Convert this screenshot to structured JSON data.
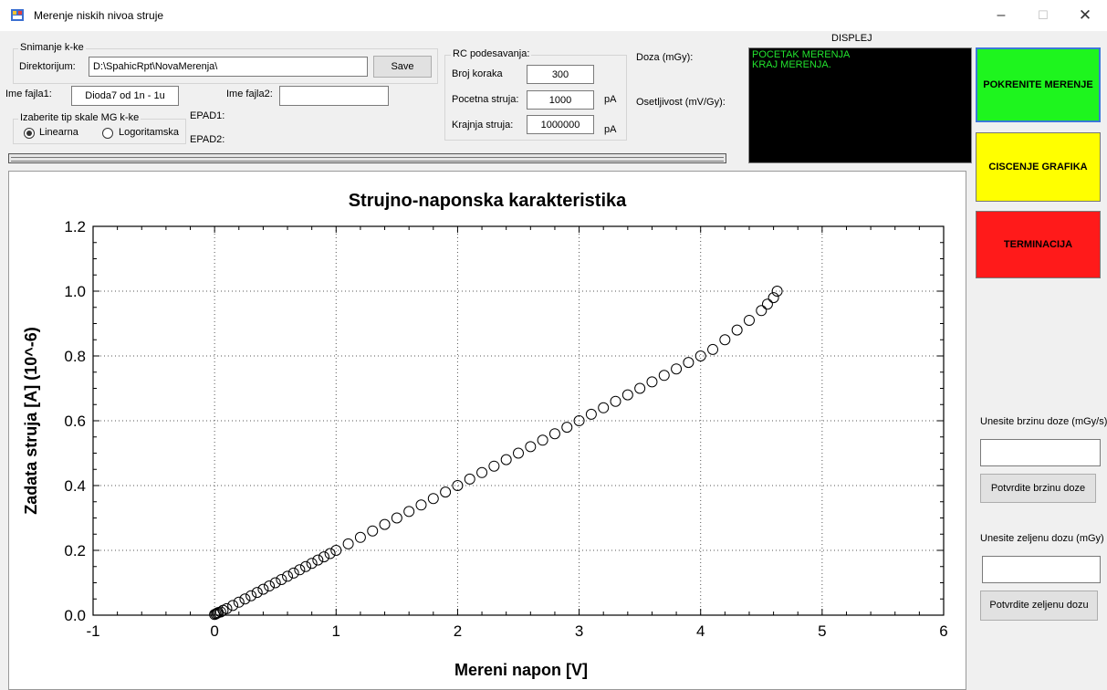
{
  "window": {
    "title": "Merenje niskih nivoa struje",
    "minimize": "–",
    "maximize": "☐",
    "close": "✕"
  },
  "save_group": {
    "legend": "Snimanje k-ke",
    "dir_label": "Direktorijum:",
    "dir_value": "D:\\SpahicRpt\\NovaMerenja\\",
    "save_button": "Save",
    "file1_label": "Ime fajla1:",
    "file1_value": "Dioda7 od 1n - 1u",
    "file2_label": "Ime fajla2:",
    "file2_value": ""
  },
  "scale_group": {
    "legend": "Izaberite tip skale MG k-ke",
    "options": [
      {
        "label": "Linearna",
        "selected": true
      },
      {
        "label": "Logoritamska",
        "selected": false
      }
    ]
  },
  "epad": {
    "epad1": "EPAD1:",
    "epad2": "EPAD2:"
  },
  "rc_group": {
    "legend": "RC podesavanja:",
    "steps_label": "Broj koraka",
    "steps_value": "300",
    "start_label": "Pocetna struja:",
    "start_value": "1000",
    "start_unit": "pA",
    "end_label": "Krajnja struja:",
    "end_value": "1000000",
    "end_unit": "pA"
  },
  "dose": {
    "label": "Doza (mGy):",
    "sensitivity_label": "Osetljivost (mV/Gy):"
  },
  "display": {
    "title": "DISPLEJ",
    "lines": [
      "POCETAK MERENJA",
      "KRAJ MERENJA."
    ],
    "text_color": "#22e22e"
  },
  "buttons": {
    "start": {
      "label": "POKRENITE MERENJE",
      "color": "#1ef51e"
    },
    "clear": {
      "label": "CISCENJE GRAFIKA",
      "color": "#ffff00"
    },
    "terminate": {
      "label": "TERMINACIJA",
      "color": "#ff1a1a"
    }
  },
  "dose_rate": {
    "label": "Unesite brzinu doze (mGy/s)",
    "value": "",
    "button": "Potvrdite brzinu doze"
  },
  "desired_dose": {
    "label": "Unesite zeljenu dozu (mGy)",
    "value": "",
    "button": "Potvrdite zeljenu dozu"
  },
  "progress": {
    "value": 0
  },
  "chart_data": {
    "type": "scatter",
    "title": "Strujno-naponska karakteristika",
    "xlabel": "Mereni napon [V]",
    "ylabel": "Zadata struja [A] (10^-6)",
    "xlim": [
      -1,
      6
    ],
    "ylim": [
      0,
      1.2
    ],
    "xticks": [
      "-1",
      "0",
      "1",
      "2",
      "3",
      "4",
      "5",
      "6"
    ],
    "yticks": [
      "0.0",
      "0.2",
      "0.4",
      "0.6",
      "0.8",
      "1.0",
      "1.2"
    ],
    "grid": true,
    "marker": "open-circle",
    "series": [
      {
        "points": [
          [
            0.0,
            0.002
          ],
          [
            0.01,
            0.004
          ],
          [
            0.02,
            0.006
          ],
          [
            0.03,
            0.008
          ],
          [
            0.05,
            0.01
          ],
          [
            0.07,
            0.015
          ],
          [
            0.1,
            0.02
          ],
          [
            0.15,
            0.03
          ],
          [
            0.2,
            0.04
          ],
          [
            0.25,
            0.05
          ],
          [
            0.3,
            0.06
          ],
          [
            0.35,
            0.07
          ],
          [
            0.4,
            0.08
          ],
          [
            0.45,
            0.09
          ],
          [
            0.5,
            0.1
          ],
          [
            0.55,
            0.11
          ],
          [
            0.6,
            0.12
          ],
          [
            0.65,
            0.13
          ],
          [
            0.7,
            0.14
          ],
          [
            0.75,
            0.15
          ],
          [
            0.8,
            0.16
          ],
          [
            0.85,
            0.17
          ],
          [
            0.9,
            0.18
          ],
          [
            0.95,
            0.19
          ],
          [
            1.0,
            0.2
          ],
          [
            1.1,
            0.22
          ],
          [
            1.2,
            0.24
          ],
          [
            1.3,
            0.26
          ],
          [
            1.4,
            0.28
          ],
          [
            1.5,
            0.3
          ],
          [
            1.6,
            0.32
          ],
          [
            1.7,
            0.34
          ],
          [
            1.8,
            0.36
          ],
          [
            1.9,
            0.38
          ],
          [
            2.0,
            0.4
          ],
          [
            2.1,
            0.42
          ],
          [
            2.2,
            0.44
          ],
          [
            2.3,
            0.46
          ],
          [
            2.4,
            0.48
          ],
          [
            2.5,
            0.5
          ],
          [
            2.6,
            0.52
          ],
          [
            2.7,
            0.54
          ],
          [
            2.8,
            0.56
          ],
          [
            2.9,
            0.58
          ],
          [
            3.0,
            0.6
          ],
          [
            3.1,
            0.62
          ],
          [
            3.2,
            0.64
          ],
          [
            3.3,
            0.66
          ],
          [
            3.4,
            0.68
          ],
          [
            3.5,
            0.7
          ],
          [
            3.6,
            0.72
          ],
          [
            3.7,
            0.74
          ],
          [
            3.8,
            0.76
          ],
          [
            3.9,
            0.78
          ],
          [
            4.0,
            0.8
          ],
          [
            4.1,
            0.82
          ],
          [
            4.2,
            0.85
          ],
          [
            4.3,
            0.88
          ],
          [
            4.4,
            0.91
          ],
          [
            4.5,
            0.94
          ],
          [
            4.55,
            0.96
          ],
          [
            4.6,
            0.98
          ],
          [
            4.63,
            1.0
          ]
        ]
      }
    ]
  }
}
